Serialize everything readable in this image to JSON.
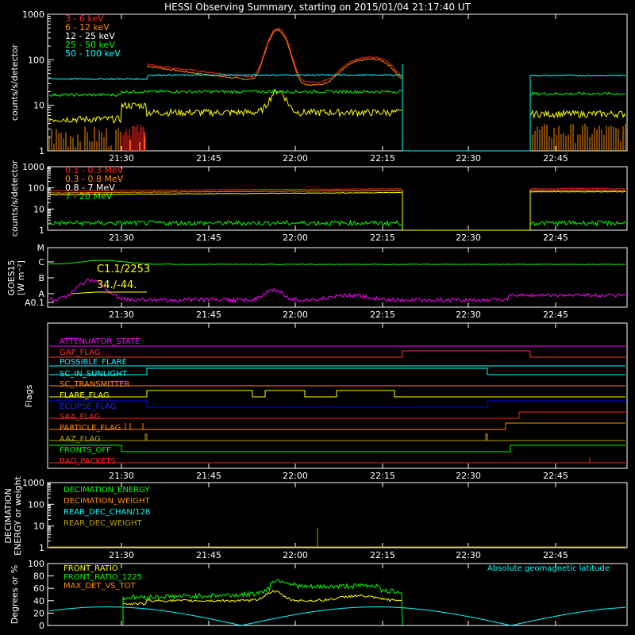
{
  "title": "HESSI Observing Summary, starting on 2015/01/04 21:17:40 UT",
  "time_ticks": [
    "21:30",
    "21:45",
    "22:00",
    "22:15",
    "22:30",
    "22:45"
  ],
  "colors": {
    "red": "#ff2020",
    "orange": "#ff8c00",
    "white": "#ffffff",
    "green": "#00ff00",
    "cyan": "#00ffff",
    "yellow": "#ffff00",
    "magenta": "#ff00ff",
    "blue": "#0000ff",
    "olive": "#b8a000",
    "darkred": "#ff3030"
  },
  "chart_data": [
    {
      "type": "line",
      "ylabel": "counts/s/detector",
      "yscale": "log",
      "ylim": [
        1,
        1000
      ],
      "yticks": [
        "1",
        "10",
        "100",
        "1000"
      ],
      "legend_placement": "top-left",
      "series": [
        {
          "name": "3 - 6 keV",
          "color": "#ff2020"
        },
        {
          "name": "6 - 12 keV",
          "color": "#ff8c00"
        },
        {
          "name": "12 - 25 keV",
          "color": "#ffffff"
        },
        {
          "name": "25 - 50 keV",
          "color": "#00ff00"
        },
        {
          "name": "50 - 100 keV",
          "color": "#00ffff"
        }
      ]
    },
    {
      "type": "line",
      "ylabel": "counts/s/detector",
      "yscale": "log",
      "ylim": [
        1,
        1000
      ],
      "yticks": [
        "1",
        "10",
        "100",
        "1000"
      ],
      "legend_placement": "top-left",
      "series": [
        {
          "name": "0.1 - 0.3 MeV",
          "color": "#ff2020"
        },
        {
          "name": "0.3 - 0.8 MeV",
          "color": "#ff8c00"
        },
        {
          "name": "0.8 - 7 MeV",
          "color": "#ffffff"
        },
        {
          "name": "7 - 20 MeV",
          "color": "#00ff00"
        }
      ]
    },
    {
      "type": "line",
      "ylabel": "GOES15 [W m⁻²]",
      "ylabel_line1": "GOES15",
      "ylabel_line2": "[W m⁻²]",
      "yticks": [
        "A0.1",
        "A",
        "B",
        "C",
        "M"
      ],
      "annotations": [
        "C1.1/2253",
        "34./-44."
      ]
    },
    {
      "type": "flags",
      "ylabel": "Flags",
      "series": [
        {
          "name": "ATTENUATOR_STATE",
          "color": "#ff00ff"
        },
        {
          "name": "GAP_FLAG",
          "color": "#ff3030"
        },
        {
          "name": "POSSIBLE_FLARE",
          "color": "#00ffff"
        },
        {
          "name": "SC_IN_SUNLIGHT",
          "color": "#00ffff"
        },
        {
          "name": "SC_TRANSMITTER",
          "color": "#ff8c00"
        },
        {
          "name": "FLARE_FLAG",
          "color": "#ffff00"
        },
        {
          "name": "ECLIPSE_FLAG",
          "color": "#2020ff"
        },
        {
          "name": "SAA_FLAG",
          "color": "#ff2020"
        },
        {
          "name": "PARTICLE_FLAG",
          "color": "#ff8c00"
        },
        {
          "name": "AAZ_FLAG",
          "color": "#b8a000"
        },
        {
          "name": "FRONTS_OFF",
          "color": "#00ff00"
        },
        {
          "name": "BAD_PACKETS",
          "color": "#ff2020"
        }
      ]
    },
    {
      "type": "line",
      "ylabel_line1": "DECIMATION",
      "ylabel_line2": "ENERGY or weight",
      "yscale": "log",
      "ylim": [
        1,
        1000
      ],
      "yticks": [
        "1",
        "10",
        "100",
        "1000"
      ],
      "series": [
        {
          "name": "DECIMATION_ENERGY",
          "color": "#00ff00"
        },
        {
          "name": "DECIMATION_WEIGHT",
          "color": "#ff8c00"
        },
        {
          "name": "REAR_DEC_CHAN/128",
          "color": "#00ffff"
        },
        {
          "name": "REAR_DEC_WEIGHT",
          "color": "#b8a000"
        }
      ]
    },
    {
      "type": "line",
      "ylabel": "Degrees or %",
      "ylim": [
        0,
        100
      ],
      "yticks": [
        "0",
        "20",
        "40",
        "60",
        "80",
        "100"
      ],
      "series": [
        {
          "name": "FRONT_RATIO",
          "color": "#ffff00"
        },
        {
          "name": "FRONT_RATIO_1225",
          "color": "#00ff00"
        },
        {
          "name": "MAX_DET_VS_TOT",
          "color": "#ff8c00"
        },
        {
          "name": "Absolute geomagnetic latitude",
          "color": "#00ffff"
        }
      ]
    }
  ]
}
